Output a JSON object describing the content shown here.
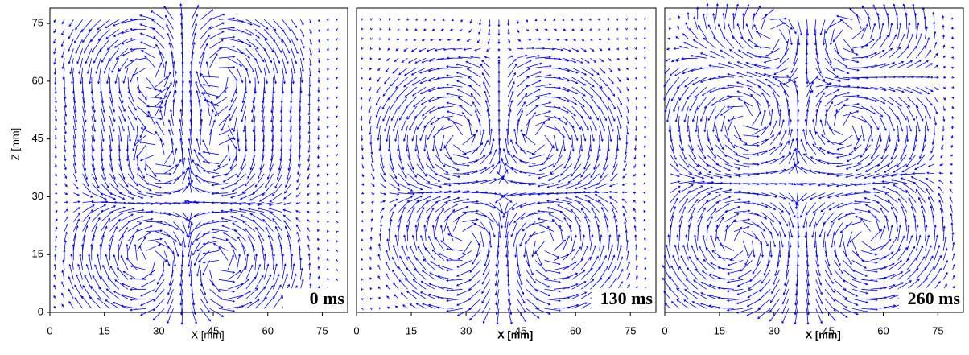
{
  "chart_data": [
    {
      "type": "quiver",
      "x_label": "X [mm]",
      "y_label": "Z [mm]",
      "xlim": [
        0,
        82
      ],
      "ylim": [
        0,
        79
      ],
      "xticks": [
        0,
        15,
        30,
        45,
        60,
        75
      ],
      "yticks": [
        0,
        15,
        30,
        45,
        60,
        75
      ],
      "annotation": "0 ms",
      "annotation_color": "#ff0000",
      "color": "#0000ff"
    },
    {
      "type": "quiver",
      "x_label": "X [mm]",
      "xlim": [
        0,
        82
      ],
      "ylim": [
        0,
        79
      ],
      "xticks": [
        0,
        15,
        30,
        45,
        60,
        75
      ],
      "annotation": "130 ms",
      "annotation_color": "#ff0000",
      "color": "#0000ff"
    },
    {
      "type": "quiver",
      "x_label": "X [mm]",
      "xlim": [
        0,
        82
      ],
      "ylim": [
        0,
        79
      ],
      "xticks": [
        0,
        15,
        30,
        45,
        60,
        75
      ],
      "annotation": "260 ms",
      "annotation_color": "#ff0000",
      "color": "#0000ff"
    }
  ]
}
